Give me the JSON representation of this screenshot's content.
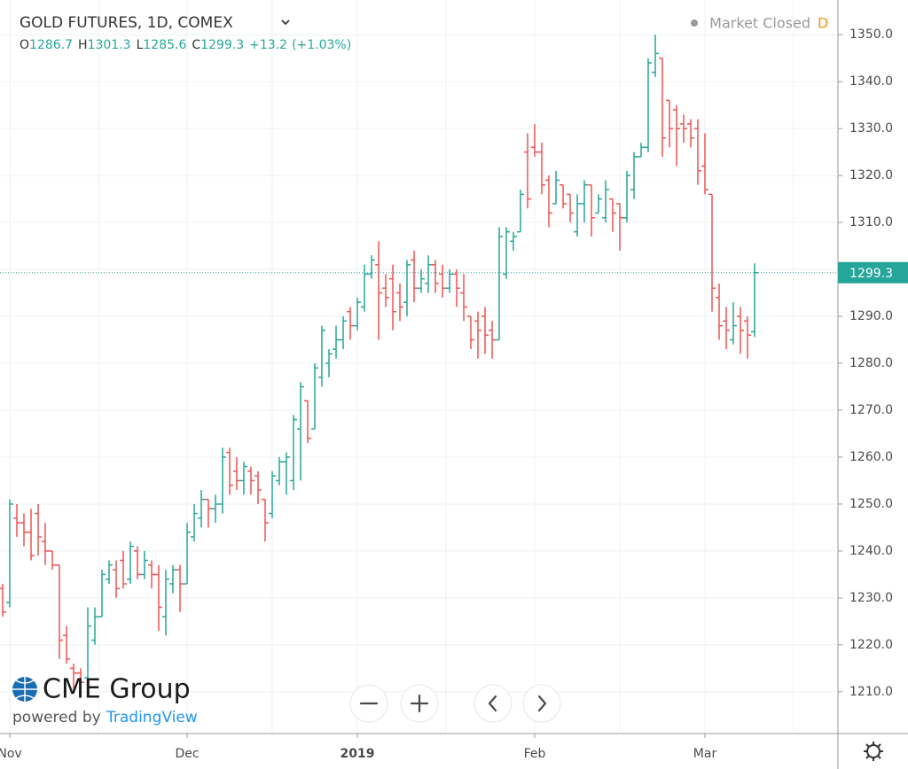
{
  "chart_data": {
    "type": "ohlc",
    "title": "GOLD FUTURES, 1D, COMEX",
    "ohlc_header": [
      {
        "label": "O",
        "value": "1286.7"
      },
      {
        "label": "H",
        "value": "1301.3"
      },
      {
        "label": "L",
        "value": "1285.6"
      },
      {
        "label": "C",
        "value": "1299.3"
      }
    ],
    "change": "+13.2",
    "change_pct": "(+1.03%)",
    "status": "Market Closed",
    "status_badge": "D",
    "last_price": 1299.3,
    "last_price_label": "1299.3",
    "up_color": "#26a69a",
    "down_color": "#ef5350",
    "grid": true,
    "ylim": [
      1201.1,
      1357.4
    ],
    "yticks": [
      {
        "value": 1210,
        "label": "1210.0"
      },
      {
        "value": 1220,
        "label": "1220.0"
      },
      {
        "value": 1230,
        "label": "1230.0"
      },
      {
        "value": 1240,
        "label": "1240.0"
      },
      {
        "value": 1250,
        "label": "1250.0"
      },
      {
        "value": 1260,
        "label": "1260.0"
      },
      {
        "value": 1270,
        "label": "1270.0"
      },
      {
        "value": 1280,
        "label": "1280.0"
      },
      {
        "value": 1290,
        "label": "1290.0"
      },
      {
        "value": 1300,
        "label": "1300.0"
      },
      {
        "value": 1310,
        "label": "1310.0"
      },
      {
        "value": 1320,
        "label": "1320.0"
      },
      {
        "value": 1330,
        "label": "1330.0"
      },
      {
        "value": 1340,
        "label": "1340.0"
      },
      {
        "value": 1350,
        "label": "1350.0"
      }
    ],
    "categories": [
      null,
      "Nov",
      null,
      null,
      null,
      null,
      null,
      null,
      null,
      null,
      null,
      null,
      null,
      null,
      null,
      null,
      null,
      null,
      null,
      null,
      null,
      null,
      null,
      null,
      null,
      null,
      "Dec",
      null,
      null,
      null,
      null,
      null,
      null,
      null,
      null,
      null,
      null,
      null,
      null,
      null,
      null,
      null,
      null,
      null,
      null,
      null,
      null,
      null,
      null,
      null,
      "2019",
      null,
      null,
      null,
      null,
      null,
      null,
      null,
      null,
      null,
      null,
      null,
      null,
      null,
      null,
      null,
      null,
      null,
      null,
      null,
      null,
      null,
      null,
      null,
      null,
      "Feb",
      null,
      null,
      null,
      null,
      null,
      null,
      null,
      null,
      null,
      null,
      null,
      null,
      null,
      null,
      null,
      null,
      null,
      null,
      null,
      null,
      null,
      null,
      null,
      "Mar",
      null,
      null,
      null,
      null,
      null,
      null,
      null
    ],
    "open": [
      1232,
      1229,
      1247,
      1246,
      1244,
      1248,
      1242,
      1240,
      1237,
      1222,
      1215,
      1214,
      1213,
      1221,
      1226,
      1234,
      1236,
      1238,
      1234,
      1240,
      1235,
      1237,
      1235,
      1226,
      1233,
      1236,
      1233,
      1243,
      1247,
      1251,
      1249,
      1250,
      1261,
      1257,
      1255,
      1257,
      1256,
      1251,
      1248,
      1255,
      1259,
      1255,
      1266,
      1272,
      1266,
      1277,
      1280,
      1283,
      1285,
      1291,
      1288,
      1292,
      1299,
      1301,
      1296,
      1298,
      1295,
      1293,
      1302,
      1296,
      1297,
      1301,
      1299,
      1296,
      1299,
      1295,
      1290,
      1289,
      1290,
      1287,
      1285,
      1299,
      1306,
      1308,
      1325,
      1326,
      1325,
      1319,
      1314,
      1318,
      1316,
      1308,
      1314,
      1318,
      1312,
      1311,
      1315,
      1314,
      1311,
      1317,
      1324,
      1326,
      1342,
      1345,
      1336,
      1334,
      1331,
      1331,
      1330,
      1322,
      1316,
      1294,
      1289,
      1285,
      1290,
      1289,
      1286.7
    ],
    "high": [
      1233,
      1251,
      1250,
      1248,
      1249,
      1250,
      1246,
      1240,
      1237,
      1224,
      1216,
      1215,
      1228,
      1228,
      1236,
      1238,
      1238,
      1240,
      1242,
      1241,
      1240,
      1238,
      1237,
      1236,
      1237,
      1237,
      1246,
      1250,
      1253,
      1251,
      1252,
      1262,
      1262,
      1260,
      1259,
      1258,
      1257,
      1251,
      1257,
      1260,
      1261,
      1269,
      1276,
      1272,
      1280,
      1288,
      1283,
      1288,
      1290,
      1292,
      1294,
      1301,
      1303,
      1306,
      1299,
      1301,
      1297,
      1302,
      1304,
      1300,
      1303,
      1302,
      1301,
      1300,
      1300,
      1299,
      1290,
      1291,
      1292,
      1289,
      1309,
      1309,
      1308,
      1317,
      1329,
      1331,
      1327,
      1320,
      1321,
      1318,
      1316,
      1316,
      1319,
      1318,
      1316,
      1319,
      1315,
      1314,
      1321,
      1325,
      1327,
      1345,
      1350,
      1345,
      1336,
      1335,
      1333,
      1332,
      1332,
      1329,
      1316,
      1297,
      1292,
      1293,
      1292,
      1290,
      1301.3
    ],
    "low": [
      1226,
      1228,
      1243,
      1241,
      1238,
      1239,
      1237,
      1236,
      1217,
      1216,
      1210,
      1211,
      1212,
      1220,
      1226,
      1233,
      1230,
      1232,
      1233,
      1234,
      1234,
      1232,
      1223,
      1222,
      1231,
      1227,
      1233,
      1242,
      1245,
      1245,
      1246,
      1248,
      1252,
      1253,
      1252,
      1252,
      1250,
      1242,
      1247,
      1254,
      1252,
      1253,
      1255,
      1263,
      1266,
      1275,
      1277,
      1281,
      1283,
      1285,
      1287,
      1291,
      1298,
      1285,
      1292,
      1287,
      1289,
      1290,
      1293,
      1295,
      1295,
      1295,
      1294,
      1295,
      1292,
      1289,
      1283,
      1281,
      1282,
      1281,
      1285,
      1298,
      1304,
      1308,
      1313,
      1324,
      1316,
      1309,
      1314,
      1313,
      1310,
      1307,
      1310,
      1307,
      1312,
      1310,
      1308,
      1304,
      1310,
      1315,
      1324,
      1325,
      1341,
      1324,
      1326,
      1322,
      1327,
      1326,
      1318,
      1316,
      1291,
      1285,
      1283,
      1284,
      1282,
      1281,
      1285.6
    ],
    "close": [
      1227,
      1250,
      1246,
      1244,
      1239,
      1243,
      1240,
      1237,
      1221,
      1217,
      1214,
      1212,
      1224,
      1226,
      1235,
      1237,
      1232,
      1233,
      1241,
      1235,
      1238,
      1235,
      1228,
      1234,
      1236,
      1233,
      1244,
      1248,
      1251,
      1249,
      1250,
      1260,
      1254,
      1255,
      1258,
      1255,
      1253,
      1246,
      1256,
      1259,
      1260,
      1268,
      1275,
      1264,
      1279,
      1287,
      1282,
      1285,
      1289,
      1288,
      1293,
      1299,
      1302,
      1295,
      1294,
      1291,
      1292,
      1301,
      1296,
      1298,
      1301,
      1297,
      1296,
      1299,
      1296,
      1292,
      1285,
      1287,
      1286,
      1285,
      1307,
      1308,
      1307,
      1316,
      1315,
      1325,
      1318,
      1312,
      1319,
      1314,
      1312,
      1314,
      1318,
      1311,
      1315,
      1317,
      1312,
      1311,
      1320,
      1324,
      1326,
      1344,
      1346,
      1328,
      1330,
      1330,
      1330,
      1328,
      1321,
      1317,
      1296,
      1288,
      1287,
      1288,
      1287,
      1286,
      1299.3
    ],
    "branding": {
      "company": "CME Group",
      "powered": "powered by",
      "provider": "TradingView"
    }
  }
}
